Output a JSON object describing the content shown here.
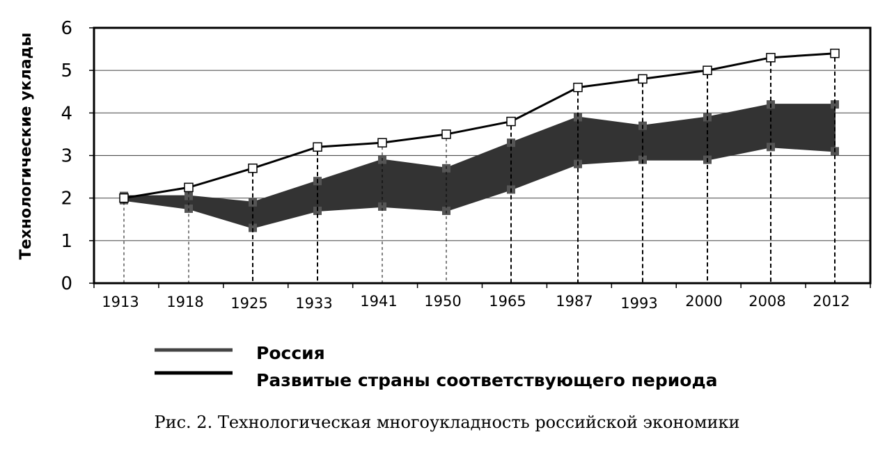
{
  "chart_data": {
    "type": "line",
    "ylabel": "Технологические уклады",
    "xlabel": "",
    "categories": [
      "1913",
      "1918",
      "1925",
      "1933",
      "1941",
      "1950",
      "1965",
      "1987",
      "1993",
      "2000",
      "2008",
      "2012"
    ],
    "yticks": [
      "0",
      "1",
      "2",
      "3",
      "4",
      "5",
      "6"
    ],
    "ylim": [
      0,
      6
    ],
    "grid": true,
    "series": [
      {
        "name": "Россия",
        "kind": "band",
        "lower": [
          1.95,
          1.75,
          1.3,
          1.7,
          1.8,
          1.7,
          2.2,
          2.8,
          2.9,
          2.9,
          3.2,
          3.1
        ],
        "upper": [
          2.05,
          2.05,
          1.9,
          2.4,
          2.9,
          2.7,
          3.3,
          3.9,
          3.7,
          3.9,
          4.2,
          4.2
        ],
        "color": "#333333"
      },
      {
        "name": "Развитые страны соответствующего периода",
        "kind": "line",
        "values": [
          2.0,
          2.25,
          2.7,
          3.2,
          3.3,
          3.5,
          3.8,
          4.6,
          4.8,
          5.0,
          5.3,
          5.4
        ],
        "color": "#000000"
      }
    ],
    "legend": {
      "position": "bottom",
      "entries": [
        "Россия",
        "Развитые страны соответствующего периода"
      ]
    },
    "caption": "Рис. 2. Технологическая многоукладность российской экономики"
  }
}
